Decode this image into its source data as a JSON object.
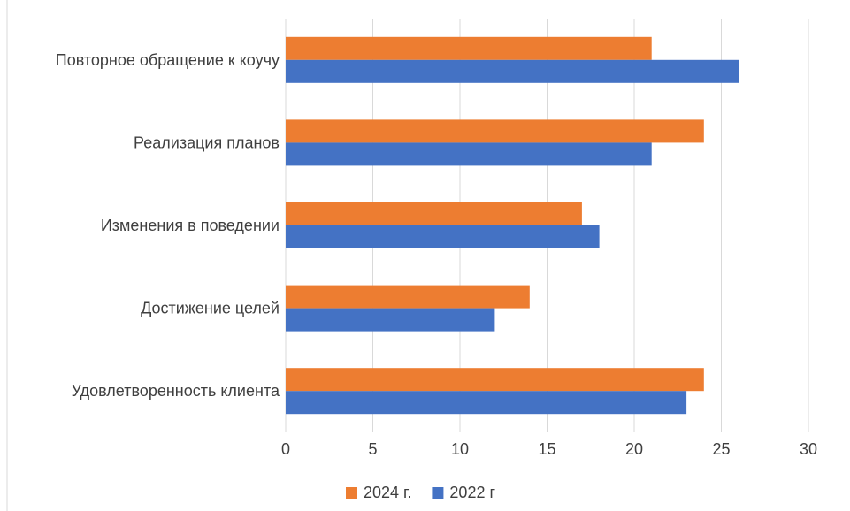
{
  "chart_data": {
    "type": "bar",
    "orientation": "horizontal",
    "categories": [
      "Удовлетворенность клиента",
      "Достижение целей",
      "Изменения в поведении",
      "Реализация планов",
      "Повторное обращение к коучу"
    ],
    "series": [
      {
        "name": "2024 г.",
        "color": "#ed7d31",
        "values": [
          24,
          14,
          17,
          24,
          21
        ]
      },
      {
        "name": "2022 г",
        "color": "#4472c4",
        "values": [
          23,
          12,
          18,
          21,
          26
        ]
      }
    ],
    "xlim": [
      0,
      30
    ],
    "x_ticks": [
      "0",
      "5",
      "10",
      "15",
      "20",
      "25",
      "30"
    ],
    "grid": true,
    "legend_position": "bottom",
    "title": "",
    "xlabel": "",
    "ylabel": ""
  }
}
